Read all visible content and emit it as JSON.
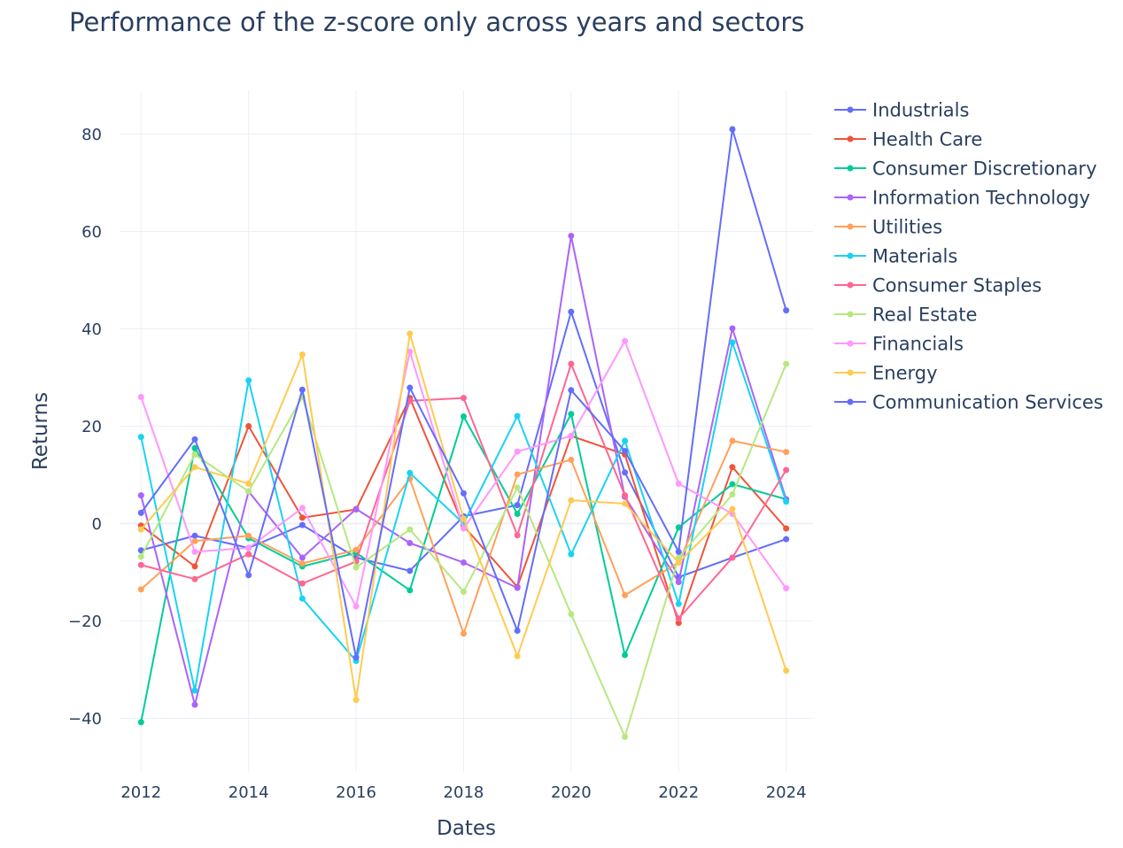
{
  "chart_data": {
    "type": "line",
    "title": "Performance of the z-score only across years and sectors",
    "xlabel": "Dates",
    "ylabel": "Returns",
    "x": [
      2012,
      2013,
      2014,
      2015,
      2016,
      2017,
      2018,
      2019,
      2020,
      2021,
      2022,
      2023,
      2024
    ],
    "xticks": [
      2012,
      2014,
      2016,
      2018,
      2020,
      2022,
      2024
    ],
    "xlim": [
      2011.6,
      2024.5
    ],
    "yticks": [
      -40,
      -20,
      0,
      20,
      40,
      60,
      80
    ],
    "ytick_labels": [
      "−40",
      "−20",
      "0",
      "20",
      "40",
      "60",
      "80"
    ],
    "ylim": [
      -51,
      89
    ],
    "grid": true,
    "legend_position": "right",
    "series": [
      {
        "name": "Industrials",
        "color": "#636efa",
        "values": [
          -5.5,
          -2.5,
          -5,
          -0.3,
          -7,
          -9.7,
          1.5,
          3.8,
          43.5,
          10.5,
          -11,
          -7,
          -3.2
        ]
      },
      {
        "name": "Health Care",
        "color": "#EF553B",
        "values": [
          -0.4,
          -8.8,
          20,
          1.2,
          2.9,
          25.8,
          -0.5,
          -13,
          18,
          14.2,
          -20.4,
          11.6,
          -1
        ]
      },
      {
        "name": "Consumer Discretionary",
        "color": "#00cc96",
        "values": [
          -40.8,
          15.5,
          -3,
          -8.8,
          -6,
          -13.7,
          22,
          2,
          22.5,
          -27,
          -0.8,
          8.1,
          5
        ]
      },
      {
        "name": "Information Technology",
        "color": "#ab63fa",
        "values": [
          5.8,
          -37.2,
          6.6,
          -7,
          3,
          -4,
          -8,
          -13.2,
          59.1,
          5.5,
          -12,
          40.1,
          5
        ]
      },
      {
        "name": "Utilities",
        "color": "#FFA15A",
        "values": [
          -13.5,
          -3.6,
          -2.5,
          -8.2,
          -5.4,
          9.2,
          -22.6,
          10.1,
          13.1,
          -14.7,
          -8,
          17,
          14.7
        ]
      },
      {
        "name": "Materials",
        "color": "#19d3f3",
        "values": [
          17.8,
          -34.3,
          29.4,
          -15.4,
          -28.2,
          10.4,
          0,
          22.1,
          -6.3,
          17,
          -16.5,
          37.2,
          4.5
        ]
      },
      {
        "name": "Consumer Staples",
        "color": "#FF6692",
        "values": [
          -8.5,
          -11.4,
          -6.3,
          -12.3,
          -7.8,
          25.2,
          25.8,
          -2.4,
          32.8,
          5.8,
          -19.5,
          -7,
          11
        ]
      },
      {
        "name": "Real Estate",
        "color": "#B6E880",
        "values": [
          -6.8,
          14.2,
          6.6,
          26,
          -9,
          -1.2,
          -14,
          7.4,
          -18.6,
          -43.8,
          -7,
          6,
          32.8
        ]
      },
      {
        "name": "Financials",
        "color": "#FF97FF",
        "values": [
          26,
          -5.8,
          -5,
          3.2,
          -17,
          35.3,
          -1,
          14.8,
          18,
          37.5,
          8.2,
          2,
          -13.3
        ]
      },
      {
        "name": "Energy",
        "color": "#FECB52",
        "values": [
          -1.2,
          11.6,
          8.2,
          34.7,
          -36.2,
          39,
          1,
          -27.2,
          4.8,
          4.1,
          -8,
          3,
          -30.2
        ]
      },
      {
        "name": "Communication Services",
        "color": "#636efa",
        "values": [
          2.2,
          17.3,
          -10.6,
          27.5,
          -27.5,
          27.9,
          6.2,
          -22,
          27.4,
          14.9,
          -5.8,
          81,
          43.8
        ]
      }
    ]
  }
}
